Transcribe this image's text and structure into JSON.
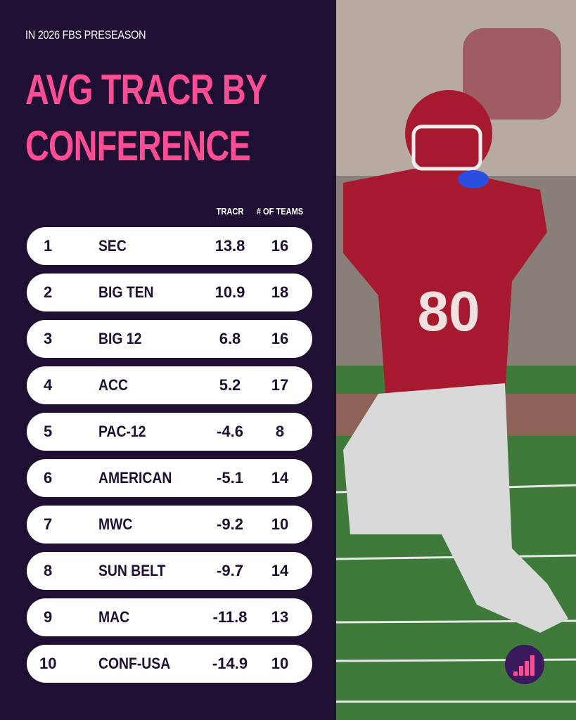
{
  "header": {
    "kicker": "IN 2026 FBS PRESEASON",
    "title": "AVG TRACR BY CONFERENCE"
  },
  "table": {
    "columns": [
      "TRACR",
      "# OF TEAMS"
    ],
    "rows": [
      [
        "1",
        "SEC",
        "13.8",
        "16"
      ],
      [
        "2",
        "BIG TEN",
        "10.9",
        "18"
      ],
      [
        "3",
        "BIG 12",
        "6.8",
        "16"
      ],
      [
        "4",
        "ACC",
        "5.2",
        "17"
      ],
      [
        "5",
        "PAC-12",
        "-4.6",
        "8"
      ],
      [
        "6",
        "AMERICAN",
        "-5.1",
        "14"
      ],
      [
        "7",
        "MWC",
        "-9.2",
        "10"
      ],
      [
        "8",
        "SUN BELT",
        "-9.7",
        "14"
      ],
      [
        "9",
        "MAC",
        "-11.8",
        "13"
      ],
      [
        "10",
        "CONF-USA",
        "-14.9",
        "10"
      ]
    ]
  }
}
